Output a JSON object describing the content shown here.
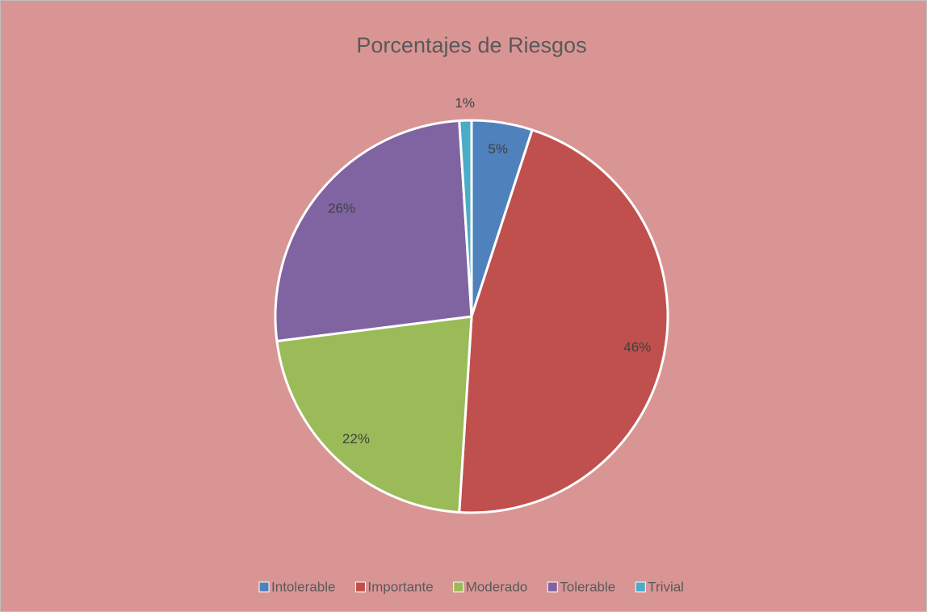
{
  "chart_data": {
    "type": "pie",
    "title": "Porcentajes de Riesgos",
    "categories": [
      "Intolerable",
      "Importante",
      "Moderado",
      "Tolerable",
      "Trivial"
    ],
    "values": [
      5,
      46,
      22,
      26,
      1
    ],
    "value_labels": [
      "5%",
      "46%",
      "22%",
      "26%",
      "1%"
    ],
    "colors": [
      "#4f81bd",
      "#c0504d",
      "#9bbb59",
      "#8064a2",
      "#4bacc6"
    ],
    "legend": "bottom"
  }
}
